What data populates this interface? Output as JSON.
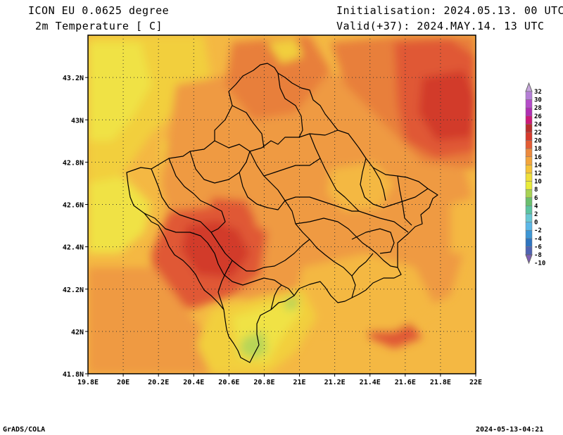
{
  "header": {
    "model": "ICON EU 0.0625 degree",
    "variable": "2m Temperature [ C]",
    "init": "Initialisation: 2024.05.13. 00 UTC",
    "valid": "Valid(+37): 2024.MAY.14. 13 UTC"
  },
  "footer": {
    "left": "GrADS/COLA",
    "right": "2024-05-13-04:21"
  },
  "map": {
    "lon_range": [
      19.8,
      22.0
    ],
    "lat_range": [
      41.8,
      43.4
    ],
    "lon_ticks": [
      "19.8E",
      "20E",
      "20.2E",
      "20.4E",
      "20.6E",
      "20.8E",
      "21E",
      "21.2E",
      "21.4E",
      "21.6E",
      "21.8E",
      "22E"
    ],
    "lat_ticks": [
      "41.8N",
      "42N",
      "42.2N",
      "42.4N",
      "42.6N",
      "42.8N",
      "43N",
      "43.2N"
    ],
    "grid": true
  },
  "colorbar": {
    "levels": [
      "32",
      "30",
      "28",
      "26",
      "24",
      "22",
      "20",
      "18",
      "16",
      "14",
      "12",
      "10",
      "8",
      "6",
      "4",
      "2",
      "0",
      "-2",
      "-4",
      "-6",
      "-8",
      "-10"
    ],
    "colors": [
      "#c7a6dc",
      "#b57fd6",
      "#b54cc9",
      "#b02fb3",
      "#cc1a78",
      "#b82e2c",
      "#d73a2c",
      "#e35c35",
      "#ec8a3e",
      "#f3a53c",
      "#f5c338",
      "#efdf3a",
      "#e9ec3a",
      "#a8d353",
      "#6bbf6e",
      "#5cc4a0",
      "#69c8d4",
      "#5cb8e8",
      "#3d96d4",
      "#2f74be",
      "#4f63b2",
      "#7e5fb5"
    ]
  },
  "field": {
    "colors": {
      "t10": "#f0e245",
      "t12": "#f2cf3e",
      "t14": "#f4b843",
      "t16": "#ef9a43",
      "t18": "#e87f3b",
      "t20": "#e05836",
      "t22": "#d23a2c",
      "t8": "#b8d556"
    }
  }
}
